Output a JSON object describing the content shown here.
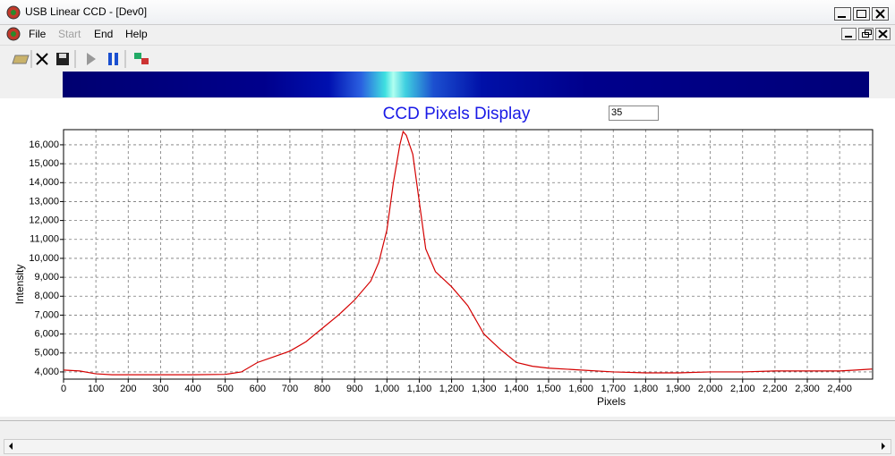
{
  "window": {
    "title": "USB Linear CCD - [Dev0]",
    "menu": [
      "File",
      "Start",
      "End",
      "Help"
    ],
    "input_value": "35"
  },
  "chart_data": {
    "type": "line",
    "title": "CCD Pixels Display",
    "x_label": "Pixels",
    "y_label": "Intensity",
    "color": "#d40000",
    "grid": true,
    "x": [
      0,
      50,
      100,
      150,
      200,
      300,
      400,
      500,
      550,
      600,
      650,
      700,
      750,
      800,
      850,
      900,
      950,
      975,
      1000,
      1020,
      1040,
      1050,
      1060,
      1080,
      1100,
      1120,
      1150,
      1200,
      1250,
      1300,
      1350,
      1400,
      1450,
      1500,
      1600,
      1700,
      1800,
      1900,
      2000,
      2100,
      2200,
      2300,
      2400,
      2450,
      2500
    ],
    "values": [
      4100,
      4050,
      3900,
      3850,
      3850,
      3850,
      3850,
      3870,
      4000,
      4500,
      4800,
      5100,
      5600,
      6300,
      7000,
      7800,
      8800,
      9800,
      11500,
      14000,
      16000,
      16700,
      16500,
      15500,
      13000,
      10500,
      9300,
      8500,
      7500,
      6000,
      5200,
      4500,
      4300,
      4200,
      4100,
      4000,
      3950,
      3950,
      4000,
      4000,
      4050,
      4050,
      4050,
      4100,
      4150
    ],
    "xlim": [
      0,
      2502
    ],
    "ylim": [
      3620,
      16800
    ],
    "xticks": [
      0,
      100,
      200,
      300,
      400,
      500,
      600,
      700,
      800,
      900,
      {
        "value": 1000,
        "label": "1,000"
      },
      {
        "value": 1100,
        "label": "1,100"
      },
      {
        "value": 1200,
        "label": "1,200"
      },
      {
        "value": 1300,
        "label": "1,300"
      },
      {
        "value": 1400,
        "label": "1,400"
      },
      {
        "value": 1500,
        "label": "1,500"
      },
      {
        "value": 1600,
        "label": "1,600"
      },
      {
        "value": 1700,
        "label": "1,700"
      },
      {
        "value": 1800,
        "label": "1,800"
      },
      {
        "value": 1900,
        "label": "1,900"
      },
      {
        "value": 2000,
        "label": "2,000"
      },
      {
        "value": 2100,
        "label": "2,100"
      },
      {
        "value": 2200,
        "label": "2,200"
      },
      {
        "value": 2300,
        "label": "2,300"
      },
      {
        "value": 2400,
        "label": "2,400"
      }
    ],
    "yticks": [
      {
        "value": 4000,
        "label": "4,000"
      },
      {
        "value": 5000,
        "label": "5,000"
      },
      {
        "value": 6000,
        "label": "6,000"
      },
      {
        "value": 7000,
        "label": "7,000"
      },
      {
        "value": 8000,
        "label": "8,000"
      },
      {
        "value": 9000,
        "label": "9,000"
      },
      {
        "value": 10000,
        "label": "10,000"
      },
      {
        "value": 11000,
        "label": "11,000"
      },
      {
        "value": 12000,
        "label": "12,000"
      },
      {
        "value": 13000,
        "label": "13,000"
      },
      {
        "value": 14000,
        "label": "14,000"
      },
      {
        "value": 15000,
        "label": "15,000"
      },
      {
        "value": 16000,
        "label": "16,000"
      }
    ]
  }
}
